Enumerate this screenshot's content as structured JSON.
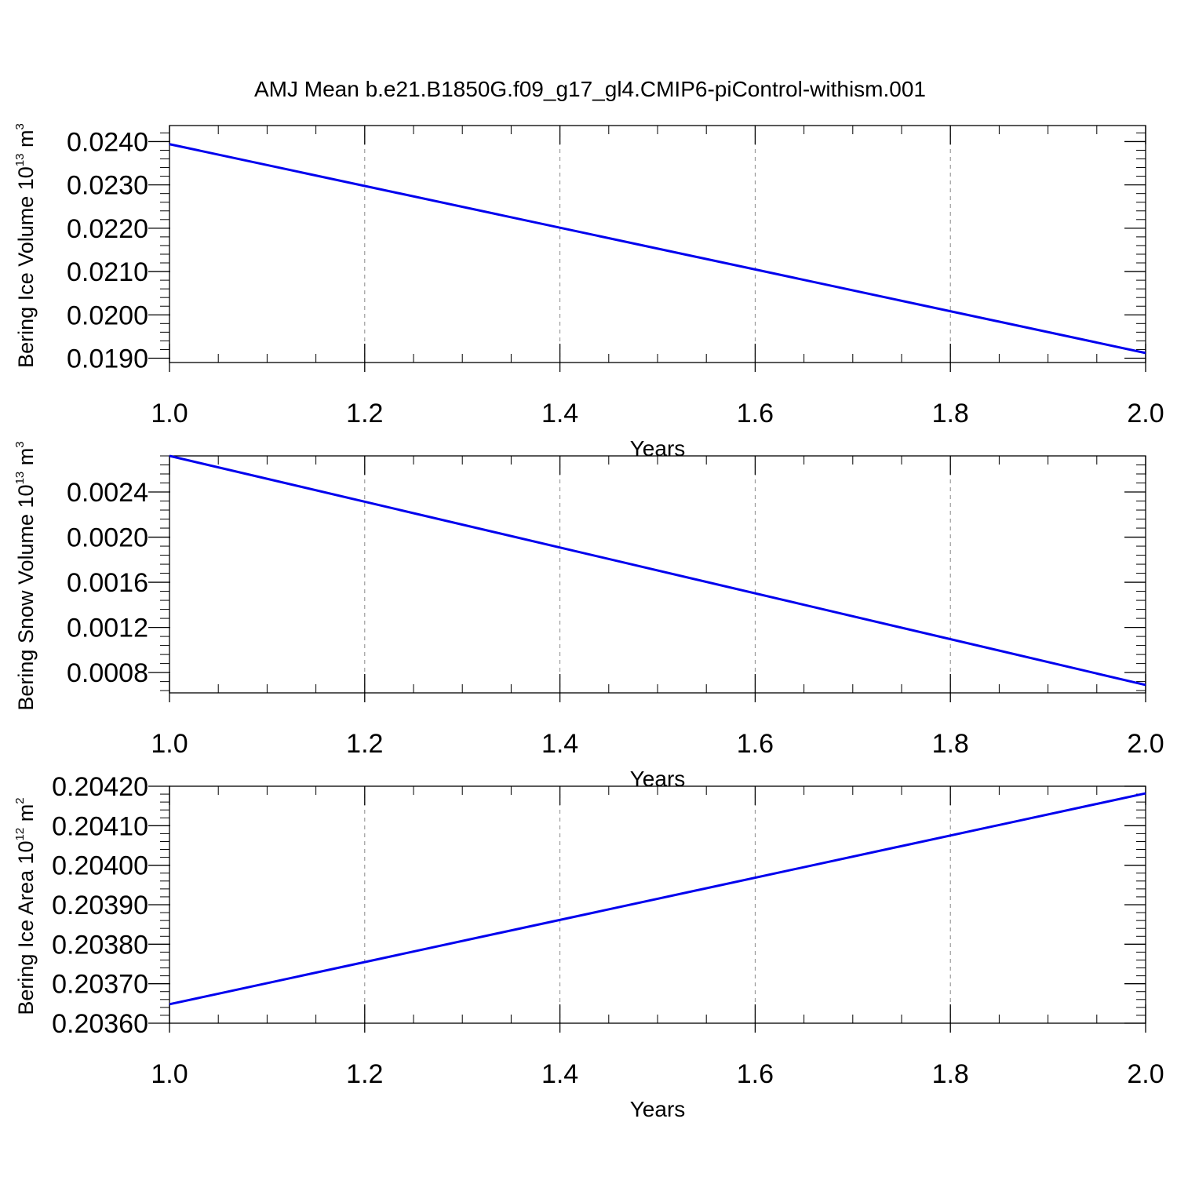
{
  "title": "AMJ Mean b.e21.B1850G.f09_g17_gl4.CMIP6-piControl-withism.001",
  "line_color": "#0000ee",
  "chart_data": [
    {
      "type": "line",
      "xlabel": "Years",
      "ylabel": {
        "prefix": "Bering Ice Volume 10",
        "exp": "13",
        "unit": " m",
        "unit_exp": "3"
      },
      "xlim": [
        1.0,
        2.0
      ],
      "ylim": [
        0.0189,
        0.02437
      ],
      "xticks": [
        1.0,
        1.2,
        1.4,
        1.6,
        1.8,
        2.0
      ],
      "xtick_labels": [
        "1.0",
        "1.2",
        "1.4",
        "1.6",
        "1.8",
        "2.0"
      ],
      "yticks": [
        0.019,
        0.02,
        0.021,
        0.022,
        0.023,
        0.024
      ],
      "ytick_labels": [
        "0.0190",
        "0.0200",
        "0.0210",
        "0.0220",
        "0.0230",
        "0.0240"
      ],
      "grid": "x dashed",
      "x": [
        1.0,
        2.0
      ],
      "y": [
        0.02394,
        0.01912
      ]
    },
    {
      "type": "line",
      "xlabel": "Years",
      "ylabel": {
        "prefix": "Bering Snow Volume 10",
        "exp": "13",
        "unit": " m",
        "unit_exp": "3"
      },
      "xlim": [
        1.0,
        2.0
      ],
      "ylim": [
        0.00062,
        0.00272
      ],
      "xticks": [
        1.0,
        1.2,
        1.4,
        1.6,
        1.8,
        2.0
      ],
      "xtick_labels": [
        "1.0",
        "1.2",
        "1.4",
        "1.6",
        "1.8",
        "2.0"
      ],
      "yticks": [
        0.0008,
        0.0012,
        0.0016,
        0.002,
        0.0024
      ],
      "ytick_labels": [
        "0.0008",
        "0.0012",
        "0.0016",
        "0.0020",
        "0.0024"
      ],
      "grid": "x dashed",
      "x": [
        1.0,
        2.0
      ],
      "y": [
        0.00272,
        0.00069
      ]
    },
    {
      "type": "line",
      "xlabel": "Years",
      "ylabel": {
        "prefix": "Bering Ice Area 10",
        "exp": "12",
        "unit": " m",
        "unit_exp": "2"
      },
      "xlim": [
        1.0,
        2.0
      ],
      "ylim": [
        0.2036,
        0.2042
      ],
      "xticks": [
        1.0,
        1.2,
        1.4,
        1.6,
        1.8,
        2.0
      ],
      "xtick_labels": [
        "1.0",
        "1.2",
        "1.4",
        "1.6",
        "1.8",
        "2.0"
      ],
      "yticks": [
        0.2036,
        0.2037,
        0.2038,
        0.2039,
        0.204,
        0.2041,
        0.2042
      ],
      "ytick_labels": [
        "0.20360",
        "0.20370",
        "0.20380",
        "0.20390",
        "0.20400",
        "0.20410",
        "0.20420"
      ],
      "grid": "x dashed",
      "x": [
        1.0,
        2.0
      ],
      "y": [
        0.203648,
        0.204182
      ]
    }
  ]
}
